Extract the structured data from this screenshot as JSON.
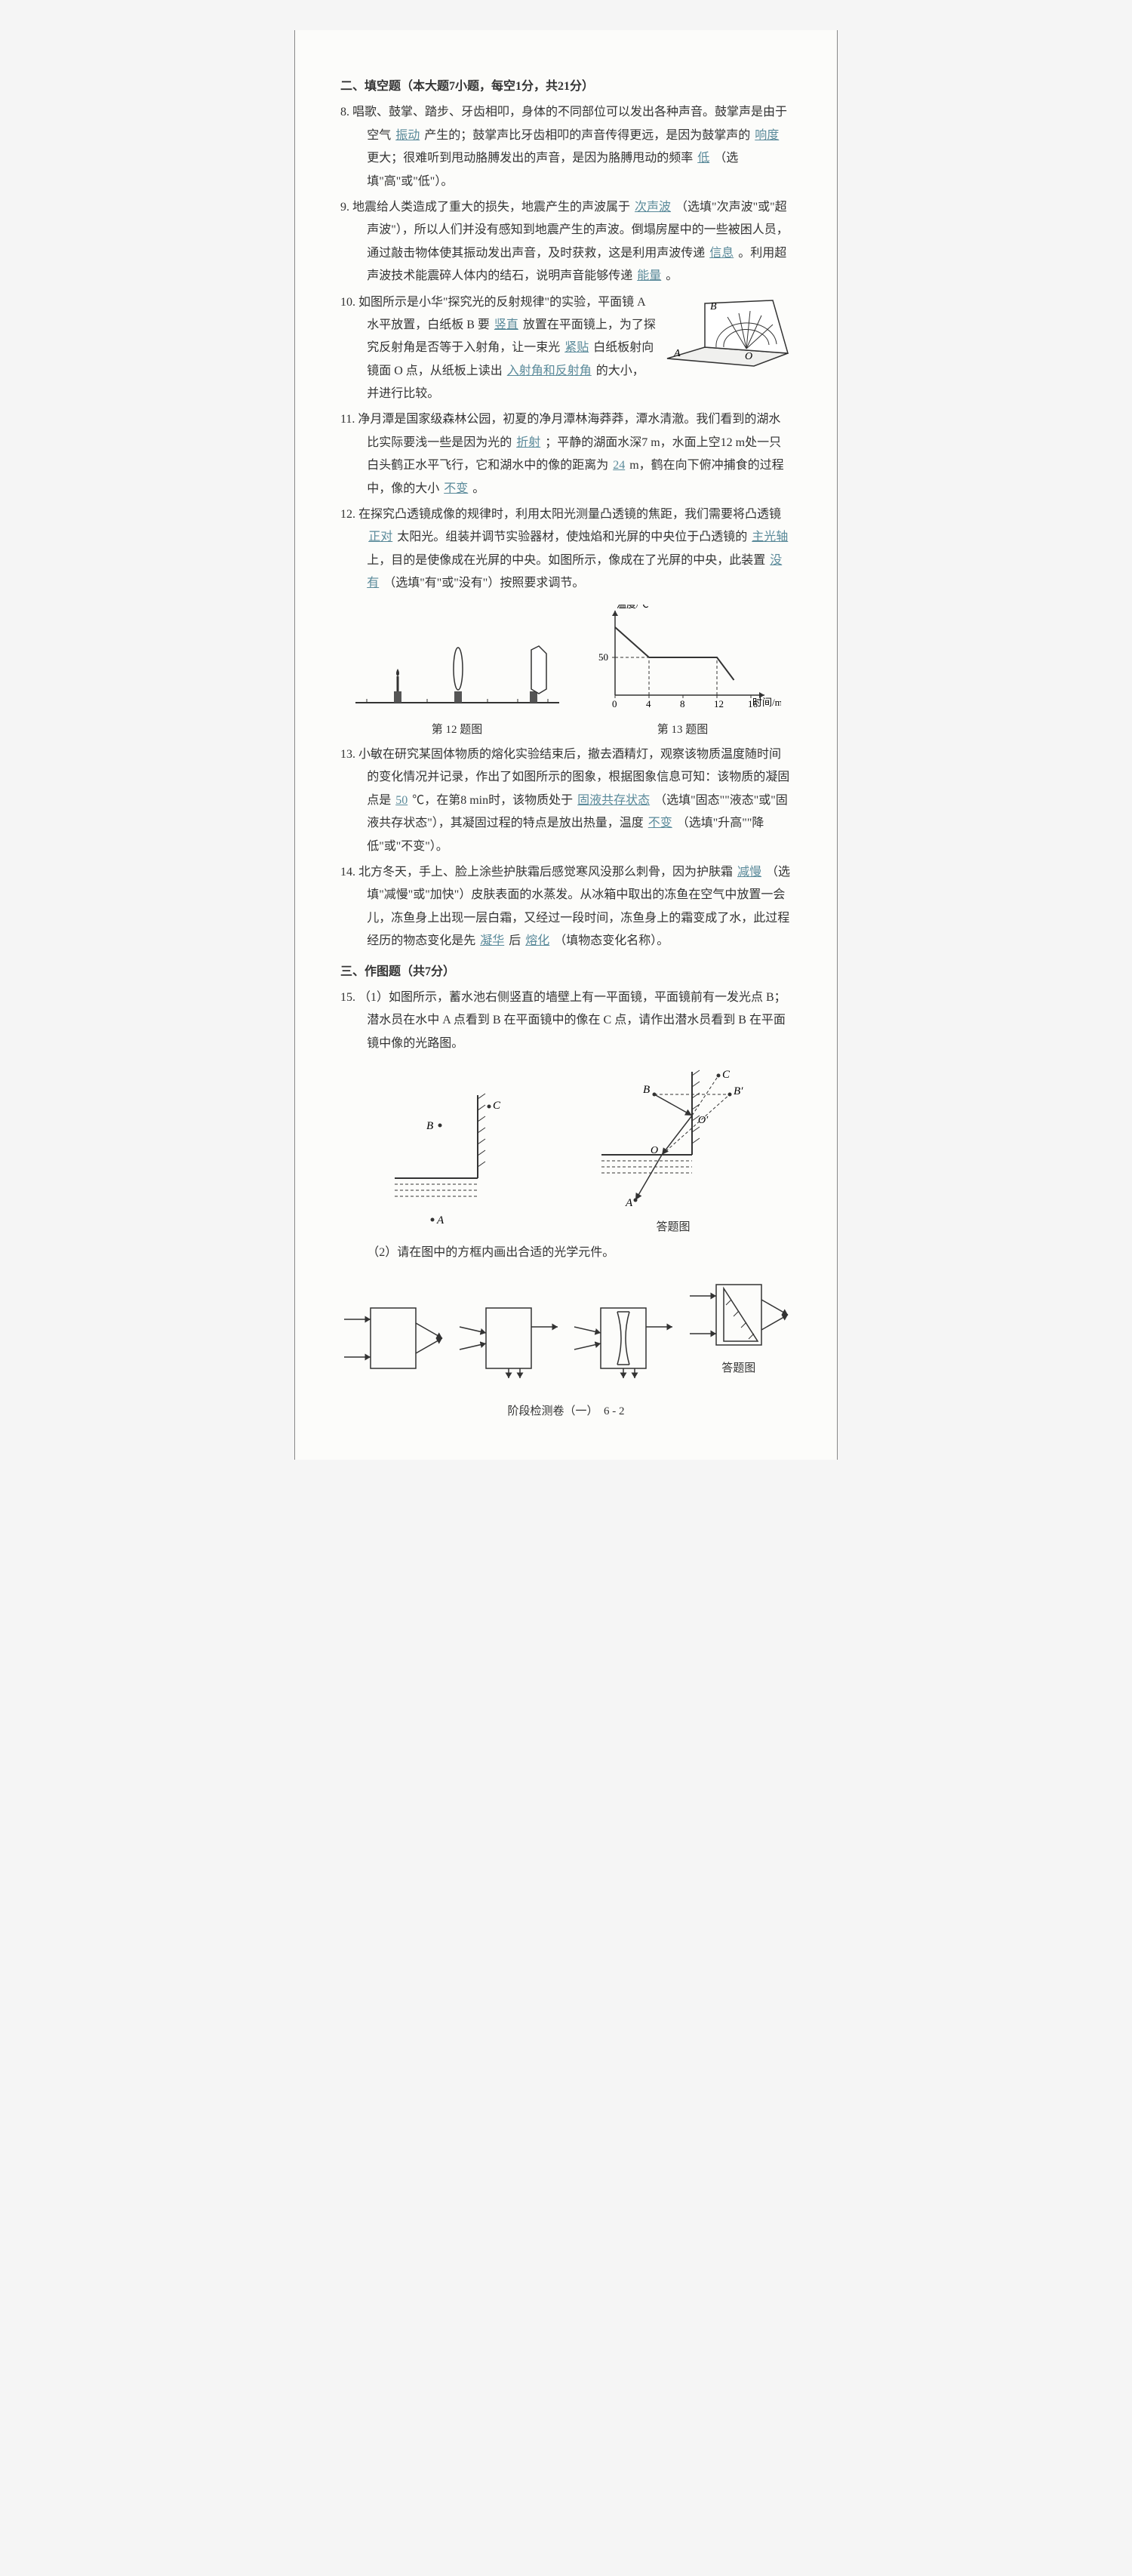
{
  "sectionII": {
    "title": "二、填空题（本大题7小题，每空1分，共21分）"
  },
  "q8": {
    "num": "8.",
    "t1": "唱歌、鼓掌、踏步、牙齿相叩，身体的不同部位可以发出各种声音。鼓掌声是由于空气",
    "b1": "振动",
    "t2": "产生的；鼓掌声比牙齿相叩的声音传得更远，是因为鼓掌声的",
    "b2": "响度",
    "t3": "更大；很难听到甩动胳膊发出的声音，是因为胳膊甩动的频率",
    "b3": "低",
    "t4": "（选填\"高\"或\"低\"）。"
  },
  "q9": {
    "num": "9.",
    "t1": "地震给人类造成了重大的损失，地震产生的声波属于",
    "b1": "次声波",
    "t2": "（选填\"次声波\"或\"超声波\"），所以人们并没有感知到地震产生的声波。倒塌房屋中的一些被困人员，通过敲击物体使其振动发出声音，及时获救，这是利用声波传递",
    "b2": "信息",
    "t3": "。利用超声波技术能震碎人体内的结石，说明声音能够传递",
    "b3": "能量",
    "t4": "。"
  },
  "q10": {
    "num": "10.",
    "t1": "如图所示是小华\"探究光的反射规律\"的实验，平面镜 A 水平放置，白纸板 B 要",
    "b1": "竖直",
    "t2": "放置在平面镜上，为了探究反射角是否等于入射角，让一束光",
    "b2": "紧贴",
    "t3": "白纸板射向镜面 O 点，从纸板上读出",
    "b3": "入射角和反射角",
    "t4": "的大小，并进行比较。",
    "fig": {
      "A": "A",
      "B": "B",
      "O": "O"
    }
  },
  "q11": {
    "num": "11.",
    "t1": "净月潭是国家级森林公园，初夏的净月潭林海莽莽，潭水清澈。我们看到的湖水比实际要浅一些是因为光的",
    "b1": "折射",
    "t2": "；平静的湖面水深7 m，水面上空12 m处一只白头鹤正水平飞行，它和湖水中的像的距离为",
    "b2": "24",
    "t3": "m，鹤在向下俯冲捕食的过程中，像的大小",
    "b3": "不变",
    "t4": "。"
  },
  "q12": {
    "num": "12.",
    "t1": "在探究凸透镜成像的规律时，利用太阳光测量凸透镜的焦距，我们需要将凸透镜",
    "b1": "正对",
    "t2": "太阳光。组装并调节实验器材，使烛焰和光屏的中央位于凸透镜的",
    "b2": "主光轴",
    "t3": "上，目的是使像成在光屏的中央。如图所示，像成在了光屏的中央，此装置",
    "b3": "没有",
    "t4": "（选填\"有\"或\"没有\"）按照要求调节。",
    "figcap": "第 12 题图"
  },
  "q13": {
    "chart": {
      "ylabel": "温度/℃",
      "xlabel": "时间/min",
      "ytick": "50",
      "xticks": [
        "0",
        "4",
        "8",
        "12",
        "16"
      ],
      "xmax": 16,
      "ymax": 100,
      "y50": 50,
      "points": [
        [
          0,
          90
        ],
        [
          4,
          50
        ],
        [
          12,
          50
        ],
        [
          14,
          20
        ]
      ],
      "dash_x": [
        4,
        12
      ],
      "axis_color": "#333",
      "line_color": "#333",
      "bg": "#fcfcfa"
    },
    "figcap": "第 13 题图",
    "num": "13.",
    "t1": "小敏在研究某固体物质的熔化实验结束后，撤去酒精灯，观察该物质温度随时间的变化情况并记录，作出了如图所示的图象，根据图象信息可知：该物质的凝固点是",
    "b1": "50",
    "t2": "℃，在第8 min时，该物质处于",
    "b2": "固液共存状态",
    "t3": "（选填\"固态\"\"液态\"或\"固液共存状态\"），其凝固过程的特点是放出热量，温度",
    "b3": "不变",
    "t4": "（选填\"升高\"\"降低\"或\"不变\"）。"
  },
  "q14": {
    "num": "14.",
    "t1": "北方冬天，手上、脸上涂些护肤霜后感觉寒风没那么刺骨，因为护肤霜",
    "b1": "减慢",
    "t2": "（选填\"减慢\"或\"加快\"）皮肤表面的水蒸发。从冰箱中取出的冻鱼在空气中放置一会儿，冻鱼身上出现一层白霜，又经过一段时间，冻鱼身上的霜变成了水，此过程经历的物态变化是先",
    "b2": "凝华",
    "t3": "后",
    "b3": "熔化",
    "t4": "（填物态变化名称）。"
  },
  "sectionIII": {
    "title": "三、作图题（共7分）"
  },
  "q15": {
    "num": "15.",
    "p1": "（1）如图所示，蓄水池右侧竖直的墙壁上有一平面镜，平面镜前有一发光点 B；潜水员在水中 A 点看到 B 在平面镜中的像在 C 点，请作出潜水员看到 B 在平面镜中像的光路图。",
    "labels": {
      "A": "A",
      "B": "B",
      "C": "C",
      "Bp": "B′",
      "O": "O",
      "Op": "O′"
    },
    "anscap": "答题图",
    "p2": "（2）请在图中的方框内画出合适的光学元件。",
    "anscap2": "答题图"
  },
  "footer": "阶段检测卷（一）　6 - 2"
}
